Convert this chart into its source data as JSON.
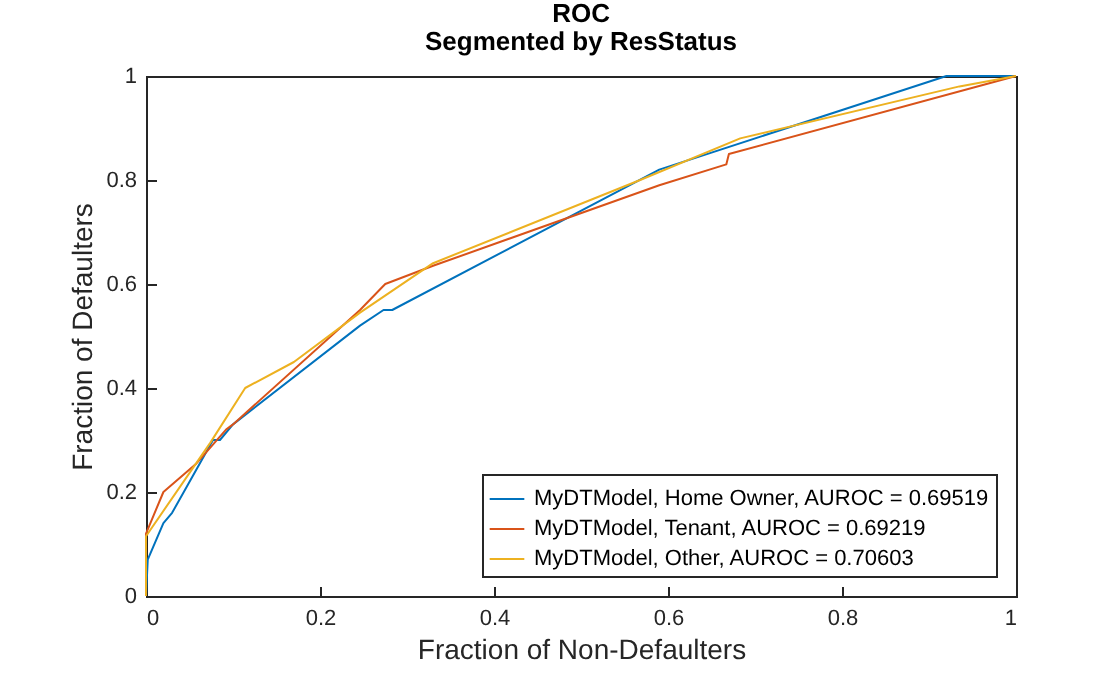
{
  "chart_data": {
    "type": "line",
    "title": "ROC",
    "subtitle": "Segmented by ResStatus",
    "xlabel": "Fraction of Non-Defaulters",
    "ylabel": "Fraction of Defaulters",
    "xlim": [
      0,
      1
    ],
    "ylim": [
      0,
      1
    ],
    "xticks": [
      0,
      0.2,
      0.4,
      0.6,
      0.8,
      1
    ],
    "yticks": [
      0,
      0.2,
      0.4,
      0.6,
      0.8,
      1
    ],
    "grid": false,
    "legend": "bottom right",
    "series": [
      {
        "name": "MyDTModel, Home Owner, AUROC = 0.69519",
        "color": "#0072bd",
        "x": [
          0,
          0.002,
          0.02,
          0.03,
          0.077,
          0.085,
          0.1,
          0.246,
          0.273,
          0.283,
          0.59,
          0.92,
          1
        ],
        "values": [
          0,
          0.07,
          0.14,
          0.16,
          0.3,
          0.3,
          0.33,
          0.52,
          0.55,
          0.55,
          0.82,
          1,
          1
        ]
      },
      {
        "name": "MyDTModel, Tenant, AUROC = 0.69219",
        "color": "#d95319",
        "x": [
          0,
          0,
          0.02,
          0.058,
          0.092,
          0.1,
          0.246,
          0.275,
          0.33,
          0.59,
          0.667,
          0.67,
          1
        ],
        "values": [
          0,
          0.12,
          0.2,
          0.255,
          0.32,
          0.33,
          0.55,
          0.6,
          0.635,
          0.79,
          0.83,
          0.85,
          1
        ]
      },
      {
        "name": "MyDTModel, Other, AUROC = 0.70603",
        "color": "#edb120",
        "x": [
          0,
          0,
          0.074,
          0.114,
          0.17,
          0.246,
          0.33,
          0.568,
          0.683,
          0.935,
          1
        ],
        "values": [
          0,
          0.115,
          0.295,
          0.4,
          0.45,
          0.545,
          0.64,
          0.8,
          0.88,
          0.98,
          1
        ]
      }
    ]
  }
}
